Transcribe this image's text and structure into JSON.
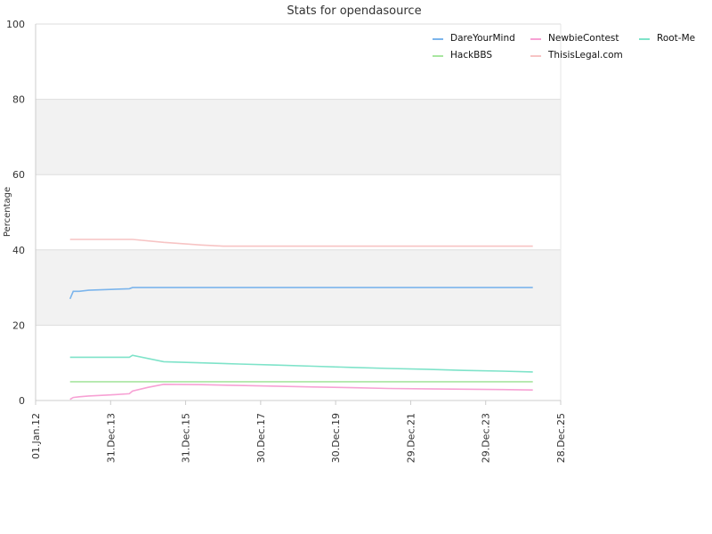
{
  "chart_data": {
    "type": "line",
    "title": "Stats for opendasource",
    "ylabel": "Percentage",
    "xlabel": "",
    "ylim": [
      0,
      100
    ],
    "xlim": [
      "2012-01-01",
      "2025-12-28"
    ],
    "yticks": [
      0,
      20,
      40,
      60,
      80,
      100
    ],
    "xticks": [
      {
        "date": "2012-01-01",
        "label": "01.Jan.12"
      },
      {
        "date": "2013-12-31",
        "label": "31.Dec.13"
      },
      {
        "date": "2015-12-31",
        "label": "31.Dec.15"
      },
      {
        "date": "2017-12-30",
        "label": "30.Dec.17"
      },
      {
        "date": "2019-12-30",
        "label": "30.Dec.19"
      },
      {
        "date": "2021-12-29",
        "label": "29.Dec.21"
      },
      {
        "date": "2023-12-29",
        "label": "29.Dec.23"
      },
      {
        "date": "2025-12-28",
        "label": "28.Dec.25"
      }
    ],
    "grid": true,
    "banded_background": true,
    "legend_position": "top-right",
    "series": [
      {
        "name": "DareYourMind",
        "color": "#7cb5ec",
        "points": [
          [
            "2012-12-01",
            27
          ],
          [
            "2013-01-01",
            29
          ],
          [
            "2013-03-01",
            29
          ],
          [
            "2013-06-01",
            29.3
          ],
          [
            "2014-01-01",
            29.5
          ],
          [
            "2014-07-01",
            29.7
          ],
          [
            "2014-08-01",
            30
          ],
          [
            "2020-01-01",
            30
          ],
          [
            "2025-04-01",
            30
          ]
        ]
      },
      {
        "name": "NewbieContest",
        "color": "#f7a1d4",
        "points": [
          [
            "2012-12-01",
            0.3
          ],
          [
            "2013-01-01",
            0.8
          ],
          [
            "2013-03-01",
            1
          ],
          [
            "2013-06-01",
            1.2
          ],
          [
            "2014-01-01",
            1.5
          ],
          [
            "2014-07-01",
            1.8
          ],
          [
            "2014-08-01",
            2.5
          ],
          [
            "2015-01-01",
            3.5
          ],
          [
            "2015-06-01",
            4.3
          ],
          [
            "2016-06-01",
            4.2
          ],
          [
            "2017-06-01",
            4
          ],
          [
            "2018-06-01",
            3.8
          ],
          [
            "2019-06-01",
            3.6
          ],
          [
            "2020-06-01",
            3.4
          ],
          [
            "2021-06-01",
            3.2
          ],
          [
            "2022-06-01",
            3.1
          ],
          [
            "2023-06-01",
            3
          ],
          [
            "2024-06-01",
            2.9
          ],
          [
            "2025-04-01",
            2.8
          ]
        ]
      },
      {
        "name": "Root-Me",
        "color": "#7ee3c9",
        "points": [
          [
            "2012-12-01",
            11.5
          ],
          [
            "2014-07-01",
            11.5
          ],
          [
            "2014-08-01",
            12
          ],
          [
            "2015-06-01",
            10.3
          ],
          [
            "2016-06-01",
            10
          ],
          [
            "2017-06-01",
            9.7
          ],
          [
            "2018-06-01",
            9.4
          ],
          [
            "2019-06-01",
            9.1
          ],
          [
            "2020-06-01",
            8.8
          ],
          [
            "2021-06-01",
            8.5
          ],
          [
            "2022-06-01",
            8.3
          ],
          [
            "2023-06-01",
            8
          ],
          [
            "2024-06-01",
            7.8
          ],
          [
            "2025-04-01",
            7.6
          ]
        ]
      },
      {
        "name": "HackBBS",
        "color": "#a8e6a0",
        "points": [
          [
            "2012-12-01",
            5
          ],
          [
            "2025-04-01",
            5
          ]
        ]
      },
      {
        "name": "ThisisLegal.com",
        "color": "#f7c4c4",
        "points": [
          [
            "2012-12-01",
            42.8
          ],
          [
            "2014-08-01",
            42.8
          ],
          [
            "2015-06-01",
            42
          ],
          [
            "2016-06-01",
            41.3
          ],
          [
            "2017-01-01",
            41
          ],
          [
            "2020-01-01",
            41
          ],
          [
            "2025-04-01",
            41
          ]
        ]
      }
    ]
  }
}
